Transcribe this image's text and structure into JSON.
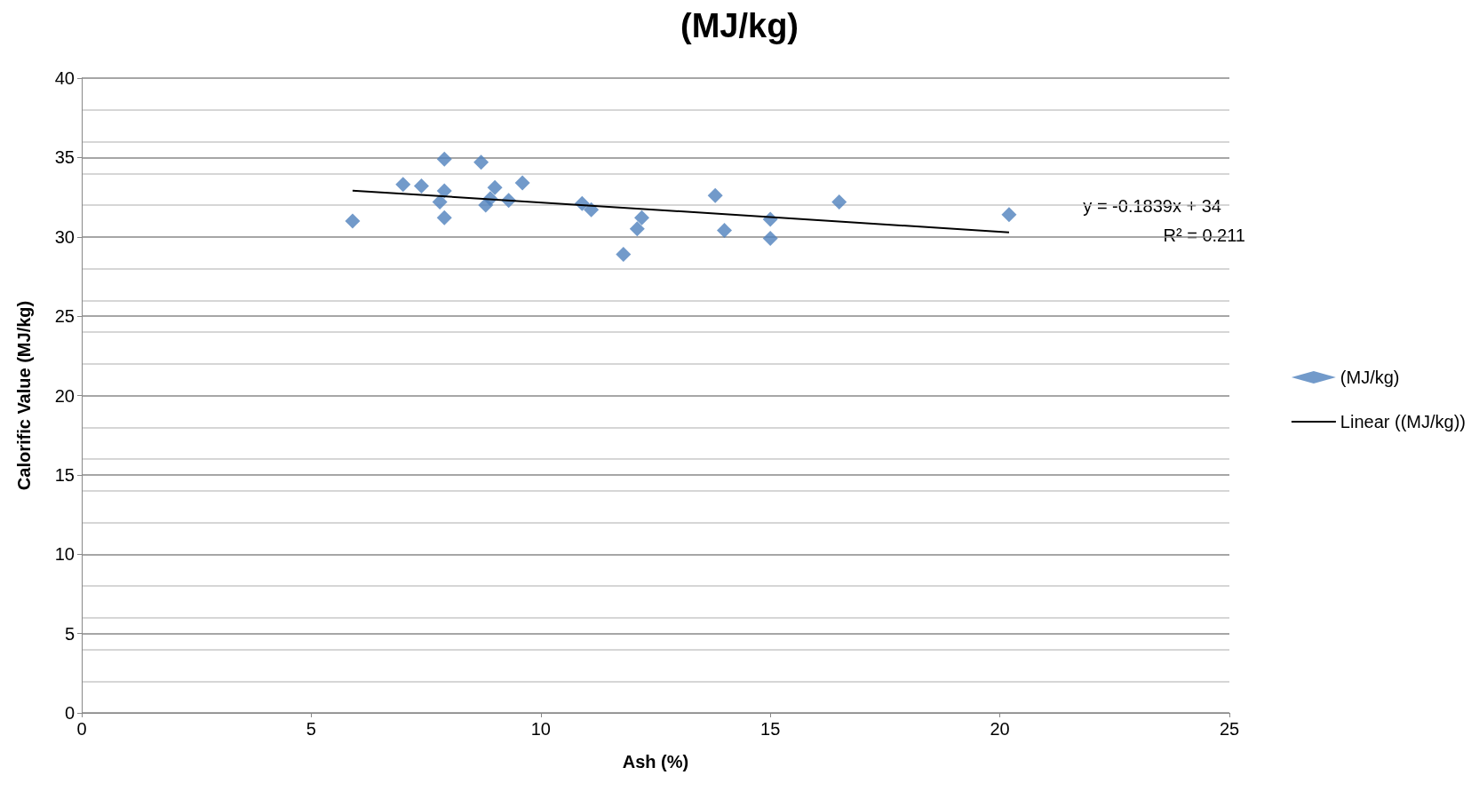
{
  "chart_data": {
    "type": "scatter",
    "title": "(MJ/kg)",
    "xlabel": "Ash (%)",
    "ylabel": "Calorific Value (MJ/kg)",
    "xlim": [
      0,
      25
    ],
    "xticks": [
      0,
      5,
      10,
      15,
      20,
      25
    ],
    "ylim": [
      0,
      40
    ],
    "yticks": [
      0,
      5,
      10,
      15,
      20,
      25,
      30,
      35,
      40
    ],
    "grid": "y",
    "legend": "right",
    "marker": "diamond",
    "annotations": [
      "y = -0.1839x + 34",
      "R² = 0.211"
    ],
    "series": [
      {
        "name": "(MJ/kg)",
        "color": "#4f81bd",
        "x": [
          5.9,
          7.0,
          7.4,
          7.9,
          7.8,
          7.9,
          7.9,
          8.7,
          8.8,
          8.9,
          9.0,
          9.3,
          9.6,
          10.9,
          11.1,
          11.8,
          12.1,
          12.2,
          13.8,
          14.0,
          15.0,
          15.0,
          16.5,
          20.2
        ],
        "values": [
          31.0,
          33.3,
          33.2,
          34.9,
          32.2,
          32.9,
          31.2,
          34.7,
          32.0,
          32.4,
          33.1,
          32.3,
          33.4,
          32.1,
          31.7,
          28.9,
          30.5,
          31.2,
          32.6,
          30.4,
          31.1,
          29.9,
          32.2,
          31.4
        ]
      },
      {
        "name": "Linear ((MJ/kg))",
        "type": "line",
        "color": "#000000",
        "marker": "none",
        "x": [
          5.9,
          20.2
        ],
        "values": [
          32.915,
          30.285
        ]
      }
    ]
  }
}
